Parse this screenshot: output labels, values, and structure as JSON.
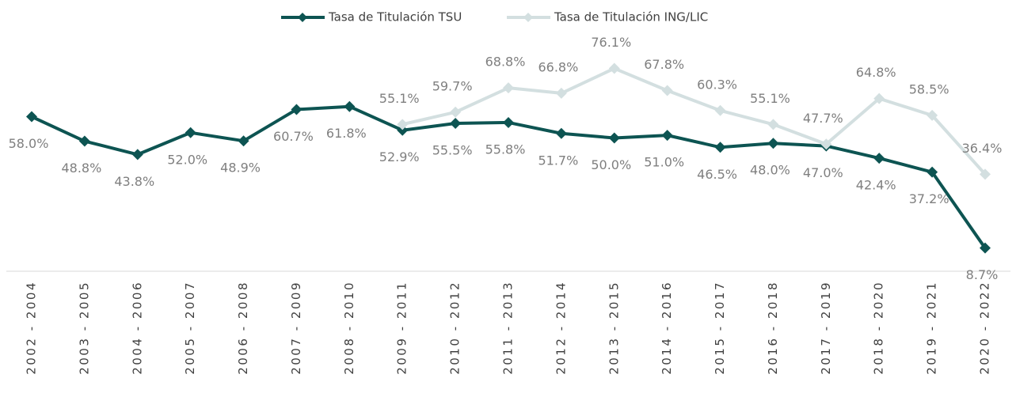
{
  "chart_data": {
    "type": "line",
    "categories": [
      "2002 - 2004",
      "2003 - 2005",
      "2004 - 2006",
      "2005 - 2007",
      "2006 - 2008",
      "2007 - 2009",
      "2008 - 2010",
      "2009 - 2011",
      "2010 - 2012",
      "2011 - 2013",
      "2012 - 2014",
      "2013 - 2015",
      "2014 - 2016",
      "2015 - 2017",
      "2016 - 2018",
      "2017 - 2019",
      "2018 - 2020",
      "2019 - 2021",
      "2020 - 2022"
    ],
    "series": [
      {
        "name": "Tasa de Titulación TSU",
        "color": "#0d5452",
        "values": [
          58.0,
          48.8,
          43.8,
          52.0,
          48.9,
          60.7,
          61.8,
          52.9,
          55.5,
          55.8,
          51.7,
          50.0,
          51.0,
          46.5,
          48.0,
          47.0,
          42.4,
          37.2,
          8.7
        ],
        "value_labels": [
          "58.0%",
          "48.8%",
          "43.8%",
          "52.0%",
          "48.9%",
          "60.7%",
          "61.8%",
          "52.9%",
          "55.5%",
          "55.8%",
          "51.7%",
          "50.0%",
          "51.0%",
          "46.5%",
          "48.0%",
          "47.0%",
          "42.4%",
          "37.2%",
          "8.7%"
        ]
      },
      {
        "name": "Tasa de Titulación ING/LIC",
        "color": "#d3dfe0",
        "values": [
          null,
          null,
          null,
          null,
          null,
          null,
          null,
          55.1,
          59.7,
          68.8,
          66.8,
          76.1,
          67.8,
          60.3,
          55.1,
          47.7,
          64.8,
          58.5,
          36.4
        ],
        "value_labels": [
          null,
          null,
          null,
          null,
          null,
          null,
          null,
          "55.1%",
          "59.7%",
          "68.8%",
          "66.8%",
          "76.1%",
          "67.8%",
          "60.3%",
          "55.1%",
          "47.7%",
          "64.8%",
          "58.5%",
          "36.4%"
        ]
      }
    ],
    "legend": "top"
  }
}
